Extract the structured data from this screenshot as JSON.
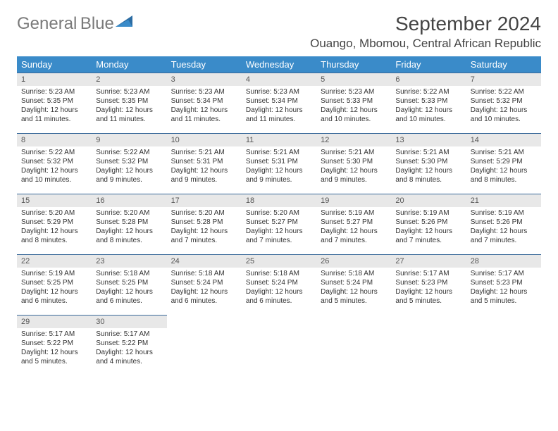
{
  "logo": {
    "text_gray": "General",
    "text_blue": "Blue"
  },
  "title": "September 2024",
  "location": "Ouango, Mbomou, Central African Republic",
  "header_color": "#3a8bc9",
  "daynum_bg": "#e8e8e8",
  "border_color": "#3a6a9a",
  "day_names": [
    "Sunday",
    "Monday",
    "Tuesday",
    "Wednesday",
    "Thursday",
    "Friday",
    "Saturday"
  ],
  "weeks": [
    [
      {
        "n": "1",
        "rise": "5:23 AM",
        "set": "5:35 PM",
        "dl": "12 hours and 11 minutes."
      },
      {
        "n": "2",
        "rise": "5:23 AM",
        "set": "5:35 PM",
        "dl": "12 hours and 11 minutes."
      },
      {
        "n": "3",
        "rise": "5:23 AM",
        "set": "5:34 PM",
        "dl": "12 hours and 11 minutes."
      },
      {
        "n": "4",
        "rise": "5:23 AM",
        "set": "5:34 PM",
        "dl": "12 hours and 11 minutes."
      },
      {
        "n": "5",
        "rise": "5:23 AM",
        "set": "5:33 PM",
        "dl": "12 hours and 10 minutes."
      },
      {
        "n": "6",
        "rise": "5:22 AM",
        "set": "5:33 PM",
        "dl": "12 hours and 10 minutes."
      },
      {
        "n": "7",
        "rise": "5:22 AM",
        "set": "5:32 PM",
        "dl": "12 hours and 10 minutes."
      }
    ],
    [
      {
        "n": "8",
        "rise": "5:22 AM",
        "set": "5:32 PM",
        "dl": "12 hours and 10 minutes."
      },
      {
        "n": "9",
        "rise": "5:22 AM",
        "set": "5:32 PM",
        "dl": "12 hours and 9 minutes."
      },
      {
        "n": "10",
        "rise": "5:21 AM",
        "set": "5:31 PM",
        "dl": "12 hours and 9 minutes."
      },
      {
        "n": "11",
        "rise": "5:21 AM",
        "set": "5:31 PM",
        "dl": "12 hours and 9 minutes."
      },
      {
        "n": "12",
        "rise": "5:21 AM",
        "set": "5:30 PM",
        "dl": "12 hours and 9 minutes."
      },
      {
        "n": "13",
        "rise": "5:21 AM",
        "set": "5:30 PM",
        "dl": "12 hours and 8 minutes."
      },
      {
        "n": "14",
        "rise": "5:21 AM",
        "set": "5:29 PM",
        "dl": "12 hours and 8 minutes."
      }
    ],
    [
      {
        "n": "15",
        "rise": "5:20 AM",
        "set": "5:29 PM",
        "dl": "12 hours and 8 minutes."
      },
      {
        "n": "16",
        "rise": "5:20 AM",
        "set": "5:28 PM",
        "dl": "12 hours and 8 minutes."
      },
      {
        "n": "17",
        "rise": "5:20 AM",
        "set": "5:28 PM",
        "dl": "12 hours and 7 minutes."
      },
      {
        "n": "18",
        "rise": "5:20 AM",
        "set": "5:27 PM",
        "dl": "12 hours and 7 minutes."
      },
      {
        "n": "19",
        "rise": "5:19 AM",
        "set": "5:27 PM",
        "dl": "12 hours and 7 minutes."
      },
      {
        "n": "20",
        "rise": "5:19 AM",
        "set": "5:26 PM",
        "dl": "12 hours and 7 minutes."
      },
      {
        "n": "21",
        "rise": "5:19 AM",
        "set": "5:26 PM",
        "dl": "12 hours and 7 minutes."
      }
    ],
    [
      {
        "n": "22",
        "rise": "5:19 AM",
        "set": "5:25 PM",
        "dl": "12 hours and 6 minutes."
      },
      {
        "n": "23",
        "rise": "5:18 AM",
        "set": "5:25 PM",
        "dl": "12 hours and 6 minutes."
      },
      {
        "n": "24",
        "rise": "5:18 AM",
        "set": "5:24 PM",
        "dl": "12 hours and 6 minutes."
      },
      {
        "n": "25",
        "rise": "5:18 AM",
        "set": "5:24 PM",
        "dl": "12 hours and 6 minutes."
      },
      {
        "n": "26",
        "rise": "5:18 AM",
        "set": "5:24 PM",
        "dl": "12 hours and 5 minutes."
      },
      {
        "n": "27",
        "rise": "5:17 AM",
        "set": "5:23 PM",
        "dl": "12 hours and 5 minutes."
      },
      {
        "n": "28",
        "rise": "5:17 AM",
        "set": "5:23 PM",
        "dl": "12 hours and 5 minutes."
      }
    ],
    [
      {
        "n": "29",
        "rise": "5:17 AM",
        "set": "5:22 PM",
        "dl": "12 hours and 5 minutes."
      },
      {
        "n": "30",
        "rise": "5:17 AM",
        "set": "5:22 PM",
        "dl": "12 hours and 4 minutes."
      },
      null,
      null,
      null,
      null,
      null
    ]
  ],
  "labels": {
    "sunrise": "Sunrise: ",
    "sunset": "Sunset: ",
    "daylight": "Daylight: "
  }
}
